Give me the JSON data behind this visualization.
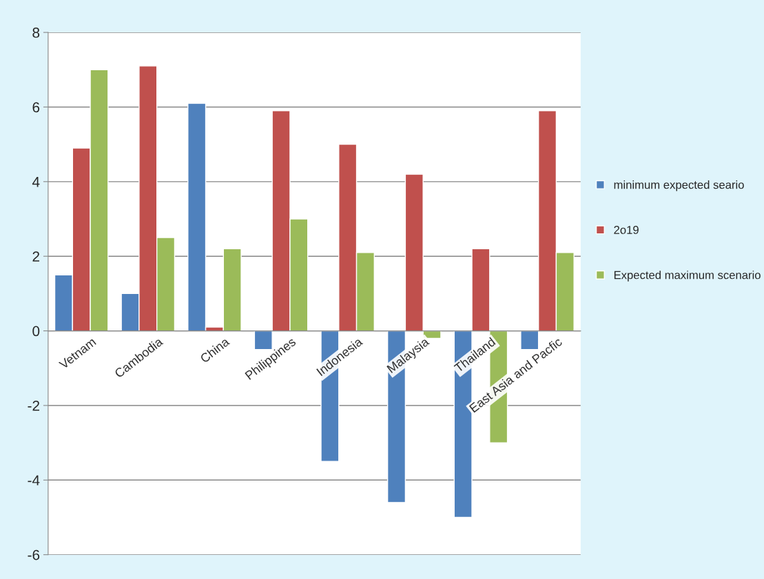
{
  "chart_data": {
    "type": "bar",
    "categories": [
      "Vetnam",
      "Cambodia",
      "China",
      "Philippines",
      "Indonesia",
      "Malaysia",
      "Thailand",
      "East Asia and Pacfic"
    ],
    "series": [
      {
        "name": "minimum expected seario",
        "color": "#4f81bd",
        "values": [
          1.5,
          1.0,
          6.1,
          -0.5,
          -3.5,
          -4.6,
          -5.0,
          -0.5
        ]
      },
      {
        "name": "2o19",
        "color": "#c0504d",
        "values": [
          4.9,
          7.1,
          0.1,
          5.9,
          5.0,
          4.2,
          2.2,
          5.9
        ]
      },
      {
        "name": "Expected maximum scenario",
        "color": "#9bbb59",
        "values": [
          7.0,
          2.5,
          2.2,
          3.0,
          2.1,
          -0.2,
          -3.0,
          2.1
        ]
      }
    ],
    "ylim": [
      -6,
      8
    ],
    "yticks": [
      -6,
      -4,
      -2,
      0,
      2,
      4,
      6,
      8
    ],
    "grid": "y",
    "legend": "right"
  }
}
